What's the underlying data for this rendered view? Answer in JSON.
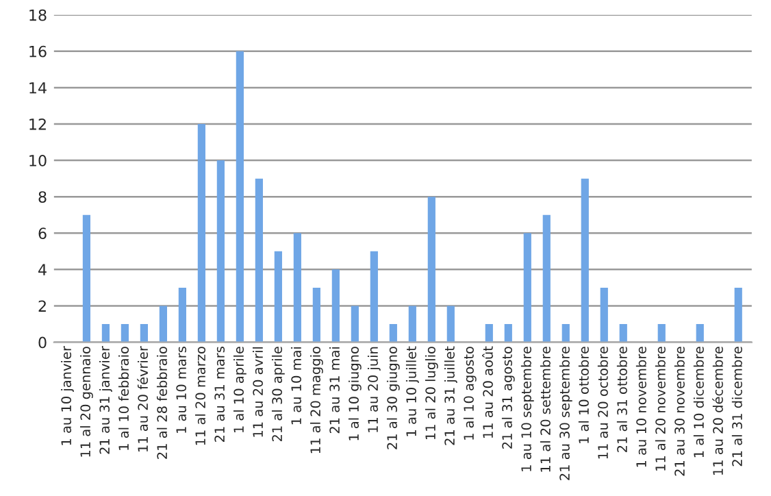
{
  "chart_data": {
    "type": "bar",
    "categories": [
      "1 au 10 janvier",
      "11 al 20 gennaio",
      "21 au 31 janvier",
      "1 al 10 febbraio",
      "11 au 20 février",
      "21 al 28 febbraio",
      "1 au 10 mars",
      "11 al 20 marzo",
      "21 au 31 mars",
      "1 al 10 aprile",
      "11 au 20 avril",
      "21 al 30 aprile",
      "1 au 10 mai",
      "11 al 20 maggio",
      "21 au 31 mai",
      "1 al 10 giugno",
      "11 au 20 juin",
      "21 al 30 giugno",
      "1 au 10 juillet",
      "11 al 20 luglio",
      "21 au 31 juillet",
      "1 al 10 agosto",
      "11 au 20 août",
      "21 al 31 agosto",
      "1 au 10 septembre",
      "11 al 20 settembre",
      "21 au 30 septembre",
      "1 al 10 ottobre",
      "11 au 20 octobre",
      "21 al 31 ottobre",
      "1 au 10 novembre",
      "11 al 20 novembre",
      "21 au 30 novembre",
      "1 al 10 dicembre",
      "11 au 20 décembre",
      "21 al 31 dicembre"
    ],
    "values": [
      0,
      7,
      1,
      1,
      1,
      2,
      3,
      12,
      10,
      16,
      9,
      5,
      6,
      3,
      4,
      2,
      5,
      1,
      2,
      8,
      2,
      0,
      1,
      1,
      6,
      7,
      1,
      9,
      3,
      1,
      0,
      1,
      0,
      1,
      0,
      3
    ],
    "color": "#6fa6e6",
    "ylim": [
      0,
      18
    ],
    "yticks": [
      0,
      2,
      4,
      6,
      8,
      10,
      12,
      14,
      16,
      18
    ],
    "grid": "y"
  }
}
